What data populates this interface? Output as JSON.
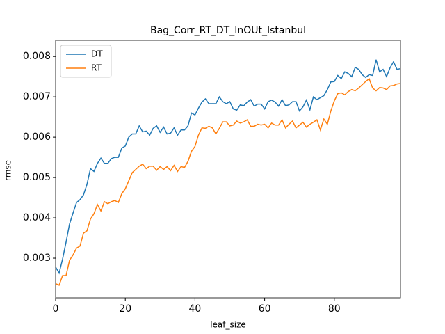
{
  "chart_data": {
    "type": "line",
    "title": "Bag_Corr_RT_DT_InOUt_Istanbul",
    "x_label": "leaf_size",
    "y_label": "rmse",
    "x": [
      0,
      1,
      2,
      3,
      4,
      5,
      6,
      7,
      8,
      9,
      10,
      11,
      12,
      13,
      14,
      15,
      16,
      17,
      18,
      19,
      20,
      21,
      22,
      23,
      24,
      25,
      26,
      27,
      28,
      29,
      30,
      31,
      32,
      33,
      34,
      35,
      36,
      37,
      38,
      39,
      40,
      41,
      42,
      43,
      44,
      45,
      46,
      47,
      48,
      49,
      50,
      51,
      52,
      53,
      54,
      55,
      56,
      57,
      58,
      59,
      60,
      61,
      62,
      63,
      64,
      65,
      66,
      67,
      68,
      69,
      70,
      71,
      72,
      73,
      74,
      75,
      76,
      77,
      78,
      79,
      80,
      81,
      82,
      83,
      84,
      85,
      86,
      87,
      88,
      89,
      90,
      91,
      92,
      93,
      94,
      95,
      96,
      97,
      98,
      99
    ],
    "series": [
      {
        "name": "DT",
        "color": "#1f77b4",
        "values": [
          0.00278,
          0.00263,
          0.00298,
          0.0034,
          0.00385,
          0.00412,
          0.00438,
          0.00445,
          0.00457,
          0.00483,
          0.00522,
          0.00515,
          0.00535,
          0.00548,
          0.00535,
          0.00535,
          0.00547,
          0.0055,
          0.0055,
          0.00573,
          0.00578,
          0.006,
          0.00608,
          0.00608,
          0.00628,
          0.00613,
          0.00615,
          0.00605,
          0.00622,
          0.00628,
          0.00612,
          0.00625,
          0.00608,
          0.0061,
          0.00623,
          0.00605,
          0.00618,
          0.00618,
          0.00628,
          0.0066,
          0.00655,
          0.00672,
          0.00687,
          0.00695,
          0.00683,
          0.00683,
          0.00683,
          0.007,
          0.00688,
          0.00683,
          0.00688,
          0.0067,
          0.00667,
          0.0068,
          0.00678,
          0.00687,
          0.00693,
          0.00677,
          0.00682,
          0.00682,
          0.0067,
          0.00688,
          0.00692,
          0.00687,
          0.00677,
          0.00693,
          0.00678,
          0.0068,
          0.00688,
          0.00688,
          0.00665,
          0.00675,
          0.00692,
          0.00668,
          0.007,
          0.00693,
          0.00698,
          0.00703,
          0.00718,
          0.00737,
          0.00738,
          0.00753,
          0.00745,
          0.00762,
          0.00758,
          0.0075,
          0.00773,
          0.00768,
          0.00755,
          0.00748,
          0.00755,
          0.00753,
          0.00792,
          0.00762,
          0.00768,
          0.0075,
          0.00772,
          0.00787,
          0.00768,
          0.0077
        ]
      },
      {
        "name": "RT",
        "color": "#ff7f0e",
        "values": [
          0.00237,
          0.00233,
          0.00257,
          0.00257,
          0.00295,
          0.00308,
          0.00325,
          0.0033,
          0.00362,
          0.00368,
          0.00397,
          0.0041,
          0.00433,
          0.00417,
          0.0044,
          0.00435,
          0.0044,
          0.00443,
          0.00438,
          0.0046,
          0.00472,
          0.00492,
          0.00512,
          0.0052,
          0.00528,
          0.00533,
          0.00522,
          0.00528,
          0.00528,
          0.00518,
          0.00527,
          0.0052,
          0.00527,
          0.00517,
          0.0053,
          0.00515,
          0.00527,
          0.00525,
          0.0054,
          0.00565,
          0.00577,
          0.00605,
          0.00623,
          0.00622,
          0.00627,
          0.00623,
          0.00608,
          0.00622,
          0.00638,
          0.00638,
          0.00628,
          0.0063,
          0.0064,
          0.00635,
          0.00638,
          0.00643,
          0.00627,
          0.00627,
          0.00632,
          0.0063,
          0.00632,
          0.00623,
          0.00635,
          0.0063,
          0.0063,
          0.00643,
          0.00623,
          0.00632,
          0.0064,
          0.00623,
          0.0063,
          0.00637,
          0.00625,
          0.00632,
          0.00637,
          0.00643,
          0.00618,
          0.00645,
          0.00632,
          0.00665,
          0.0069,
          0.00708,
          0.0071,
          0.00705,
          0.00713,
          0.00718,
          0.00715,
          0.00722,
          0.0073,
          0.00738,
          0.00745,
          0.00722,
          0.00715,
          0.00723,
          0.00722,
          0.00718,
          0.00727,
          0.00728,
          0.00732,
          0.00733
        ]
      }
    ],
    "xlim": [
      0,
      99
    ],
    "xticks": [
      0,
      20,
      40,
      60,
      80
    ],
    "ylim": [
      0.002017,
      0.0084
    ],
    "yticks": [
      0.003,
      0.004,
      0.005,
      0.006,
      0.007,
      0.008
    ],
    "legend": "upper left"
  }
}
